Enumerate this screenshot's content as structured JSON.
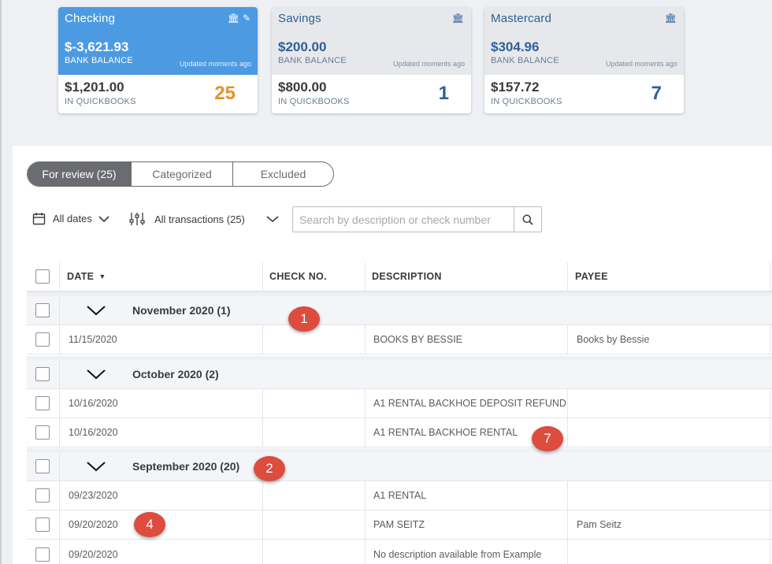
{
  "accounts": [
    {
      "name": "Checking",
      "bank_balance": "$-3,621.93",
      "bank_label": "BANK BALANCE",
      "updated": "Updated moments ago",
      "qb_balance": "$1,201.00",
      "qb_label": "IN QUICKBOOKS",
      "count": "25",
      "active": true
    },
    {
      "name": "Savings",
      "bank_balance": "$200.00",
      "bank_label": "BANK BALANCE",
      "updated": "Updated moments ago",
      "qb_balance": "$800.00",
      "qb_label": "IN QUICKBOOKS",
      "count": "1"
    },
    {
      "name": "Mastercard",
      "bank_balance": "$304.96",
      "bank_label": "BANK BALANCE",
      "updated": "Updated moments ago",
      "qb_balance": "$157.72",
      "qb_label": "IN QUICKBOOKS",
      "count": "7"
    }
  ],
  "tabs": [
    {
      "label": "For review (25)",
      "active": true
    },
    {
      "label": "Categorized"
    },
    {
      "label": "Excluded"
    }
  ],
  "filters": {
    "dates": "All dates",
    "transactions": "All transactions (25)",
    "search_placeholder": "Search by description or check number"
  },
  "table": {
    "columns": [
      "DATE",
      "CHECK NO.",
      "DESCRIPTION",
      "PAYEE"
    ],
    "groups": [
      {
        "label": "November 2020 (1)",
        "rows": [
          {
            "date": "11/15/2020",
            "check": "",
            "description": "BOOKS BY BESSIE",
            "payee": "Books by Bessie"
          }
        ]
      },
      {
        "label": "October 2020 (2)",
        "rows": [
          {
            "date": "10/16/2020",
            "check": "",
            "description": "A1 RENTAL BACKHOE DEPOSIT REFUND",
            "payee": ""
          },
          {
            "date": "10/16/2020",
            "check": "",
            "description": "A1 RENTAL BACKHOE RENTAL",
            "payee": ""
          }
        ]
      },
      {
        "label": "September 2020 (20)",
        "rows": [
          {
            "date": "09/23/2020",
            "check": "",
            "description": "A1 RENTAL",
            "payee": ""
          },
          {
            "date": "09/20/2020",
            "check": "",
            "description": "PAM SEITZ",
            "payee": "Pam Seitz"
          },
          {
            "date": "09/20/2020",
            "check": "",
            "description": "No description available from Example",
            "payee": ""
          }
        ]
      }
    ]
  },
  "annotations": [
    "1",
    "2",
    "7",
    "4"
  ],
  "colors": {
    "accent_blue": "#4c9ae2",
    "count_orange": "#e6922a",
    "badge_red": "#dc4c3f",
    "text_blue": "#2f5f96"
  }
}
